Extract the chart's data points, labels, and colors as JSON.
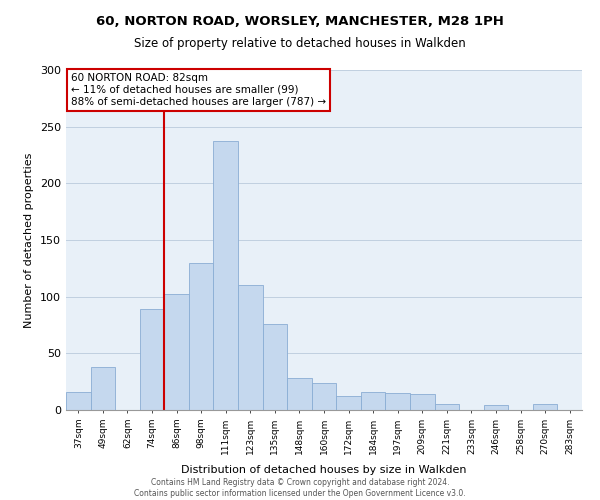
{
  "title_line1": "60, NORTON ROAD, WORSLEY, MANCHESTER, M28 1PH",
  "title_line2": "Size of property relative to detached houses in Walkden",
  "xlabel": "Distribution of detached houses by size in Walkden",
  "ylabel": "Number of detached properties",
  "bar_labels": [
    "37sqm",
    "49sqm",
    "62sqm",
    "74sqm",
    "86sqm",
    "98sqm",
    "111sqm",
    "123sqm",
    "135sqm",
    "148sqm",
    "160sqm",
    "172sqm",
    "184sqm",
    "197sqm",
    "209sqm",
    "221sqm",
    "233sqm",
    "246sqm",
    "258sqm",
    "270sqm",
    "283sqm"
  ],
  "bar_heights": [
    16,
    38,
    0,
    89,
    102,
    130,
    237,
    110,
    76,
    28,
    24,
    12,
    16,
    15,
    14,
    5,
    0,
    4,
    0,
    5,
    0
  ],
  "bar_color": "#c5d8ee",
  "bar_edge_color": "#8aadd4",
  "vline_color": "#cc0000",
  "vline_x_index": 3.5,
  "annotation_box_title": "60 NORTON ROAD: 82sqm",
  "annotation_line1": "← 11% of detached houses are smaller (99)",
  "annotation_line2": "88% of semi-detached houses are larger (787) →",
  "annotation_box_color": "#cc0000",
  "ylim": [
    0,
    300
  ],
  "yticks": [
    0,
    50,
    100,
    150,
    200,
    250,
    300
  ],
  "footer_line1": "Contains HM Land Registry data © Crown copyright and database right 2024.",
  "footer_line2": "Contains public sector information licensed under the Open Government Licence v3.0.",
  "bg_color": "#e8f0f8"
}
